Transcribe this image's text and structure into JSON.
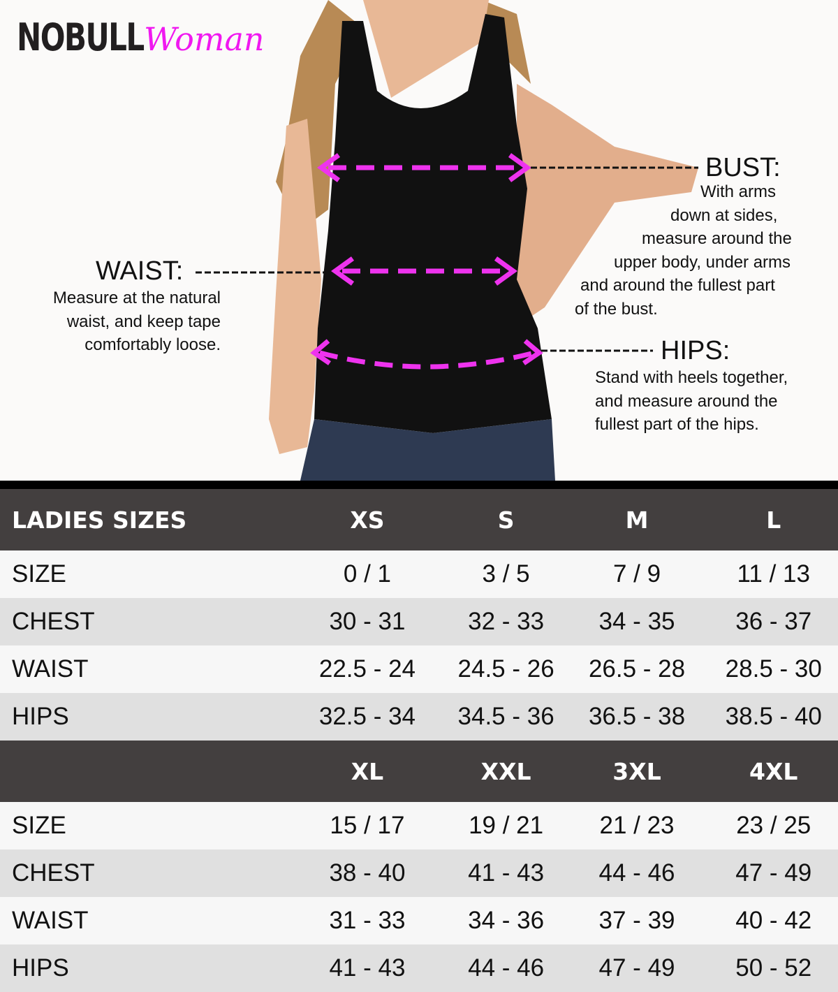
{
  "brand": {
    "logo_text": "NOBULL",
    "logo_sub": "Woman",
    "accent": "#f018f0"
  },
  "annotations": {
    "bust": {
      "title": "BUST:",
      "lines": [
        "With arms",
        "down at sides,",
        "measure around the",
        "upper body, under arms",
        "and around the fullest part",
        "of the bust."
      ]
    },
    "waist": {
      "title": "WAIST:",
      "lines": [
        "Measure at the natural",
        "waist, and keep tape",
        "comfortably loose."
      ]
    },
    "hips": {
      "title": "HIPS:",
      "lines": [
        "Stand with heels together,",
        "and measure around the",
        "fullest part of the hips."
      ]
    }
  },
  "table": {
    "header_label": "LADIES SIZES",
    "groups": [
      {
        "sizes": [
          "XS",
          "S",
          "M",
          "L"
        ],
        "rows": [
          {
            "label": "SIZE",
            "values": [
              "0 / 1",
              "3 / 5",
              "7 / 9",
              "11 / 13"
            ]
          },
          {
            "label": "CHEST",
            "values": [
              "30 - 31",
              "32 - 33",
              "34 - 35",
              "36 - 37"
            ]
          },
          {
            "label": "WAIST",
            "values": [
              "22.5 - 24",
              "24.5 - 26",
              "26.5 - 28",
              "28.5 - 30"
            ]
          },
          {
            "label": "HIPS",
            "values": [
              "32.5 - 34",
              "34.5 - 36",
              "36.5 - 38",
              "38.5 - 40"
            ]
          }
        ]
      },
      {
        "sizes": [
          "XL",
          "XXL",
          "3XL",
          "4XL"
        ],
        "rows": [
          {
            "label": "SIZE",
            "values": [
              "15 / 17",
              "19 / 21",
              "21 / 23",
              "23 / 25"
            ]
          },
          {
            "label": "CHEST",
            "values": [
              "38 - 40",
              "41 - 43",
              "44 - 46",
              "47 - 49"
            ]
          },
          {
            "label": "WAIST",
            "values": [
              "31 - 33",
              "34 - 36",
              "37 - 39",
              "40 - 42"
            ]
          },
          {
            "label": "HIPS",
            "values": [
              "41 - 43",
              "44 - 46",
              "47 - 49",
              "50 - 52"
            ]
          }
        ]
      }
    ]
  }
}
